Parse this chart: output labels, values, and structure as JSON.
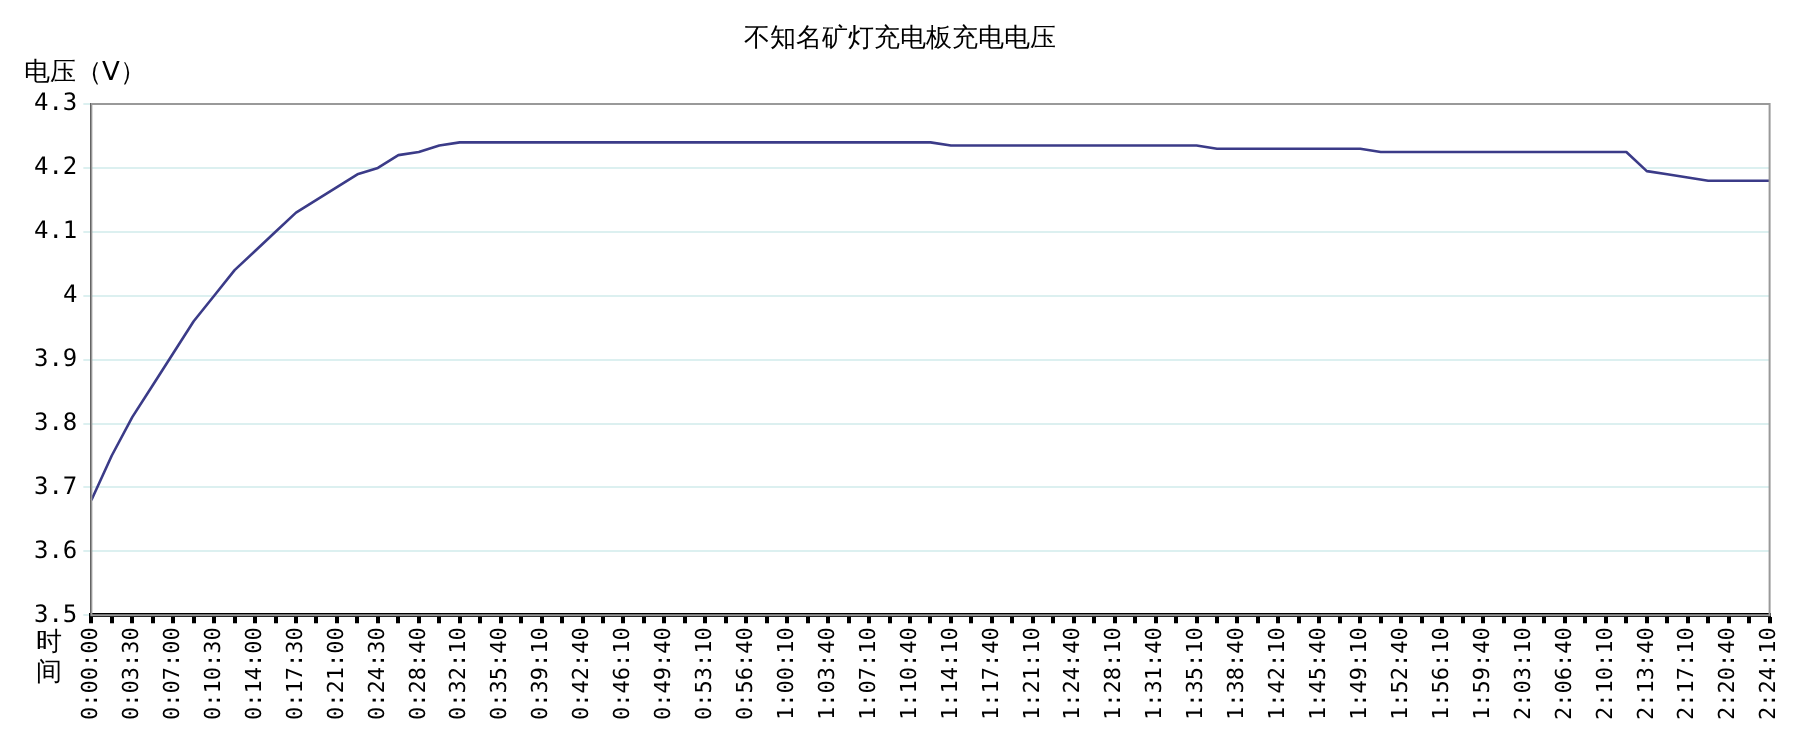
{
  "chart_data": {
    "type": "line",
    "title": "不知名矿灯充电板充电电压",
    "ylabel": "电压（V）",
    "xlabel": "时间",
    "categories": [
      "0:00:00",
      null,
      "0:03:30",
      null,
      "0:07:00",
      null,
      "0:10:30",
      null,
      "0:14:00",
      null,
      "0:17:30",
      null,
      "0:21:00",
      null,
      "0:24:30",
      null,
      "0:28:40",
      null,
      "0:32:10",
      null,
      "0:35:40",
      null,
      "0:39:10",
      null,
      "0:42:40",
      null,
      "0:46:10",
      null,
      "0:49:40",
      null,
      "0:53:10",
      null,
      "0:56:40",
      null,
      "1:00:10",
      null,
      "1:03:40",
      null,
      "1:07:10",
      null,
      "1:10:40",
      null,
      "1:14:10",
      null,
      "1:17:40",
      null,
      "1:21:10",
      null,
      "1:24:40",
      null,
      "1:28:10",
      null,
      "1:31:40",
      null,
      "1:35:10",
      null,
      "1:38:40",
      null,
      "1:42:10",
      null,
      "1:45:40",
      null,
      "1:49:10",
      null,
      "1:52:40",
      null,
      "1:56:10",
      null,
      "1:59:40",
      null,
      "2:03:10",
      null,
      "2:06:40",
      null,
      "2:10:10",
      null,
      "2:13:40",
      null,
      "2:17:10",
      null,
      "2:20:40",
      null,
      "2:24:10"
    ],
    "series": [
      {
        "color": "#3b3b88",
        "values": [
          3.68,
          3.75,
          3.81,
          3.86,
          3.91,
          3.96,
          4.0,
          4.04,
          4.07,
          4.1,
          4.13,
          4.15,
          4.17,
          4.19,
          4.2,
          4.22,
          4.225,
          4.235,
          4.24,
          4.24,
          4.24,
          4.24,
          4.24,
          4.24,
          4.24,
          4.24,
          4.24,
          4.24,
          4.24,
          4.24,
          4.24,
          4.24,
          4.24,
          4.24,
          4.24,
          4.24,
          4.24,
          4.24,
          4.24,
          4.24,
          4.24,
          4.24,
          4.235,
          4.235,
          4.235,
          4.235,
          4.235,
          4.235,
          4.235,
          4.235,
          4.235,
          4.235,
          4.235,
          4.235,
          4.235,
          4.23,
          4.23,
          4.23,
          4.23,
          4.23,
          4.23,
          4.23,
          4.23,
          4.225,
          4.225,
          4.225,
          4.225,
          4.225,
          4.225,
          4.225,
          4.225,
          4.225,
          4.225,
          4.225,
          4.225,
          4.225,
          4.195,
          4.19,
          4.185,
          4.18,
          4.18,
          4.18,
          4.18
        ]
      }
    ],
    "ylim": [
      3.5,
      4.3
    ],
    "yticks": [
      3.5,
      3.6,
      3.7,
      3.8,
      3.9,
      4,
      4.1,
      4.2,
      4.3
    ],
    "grid": "y"
  }
}
